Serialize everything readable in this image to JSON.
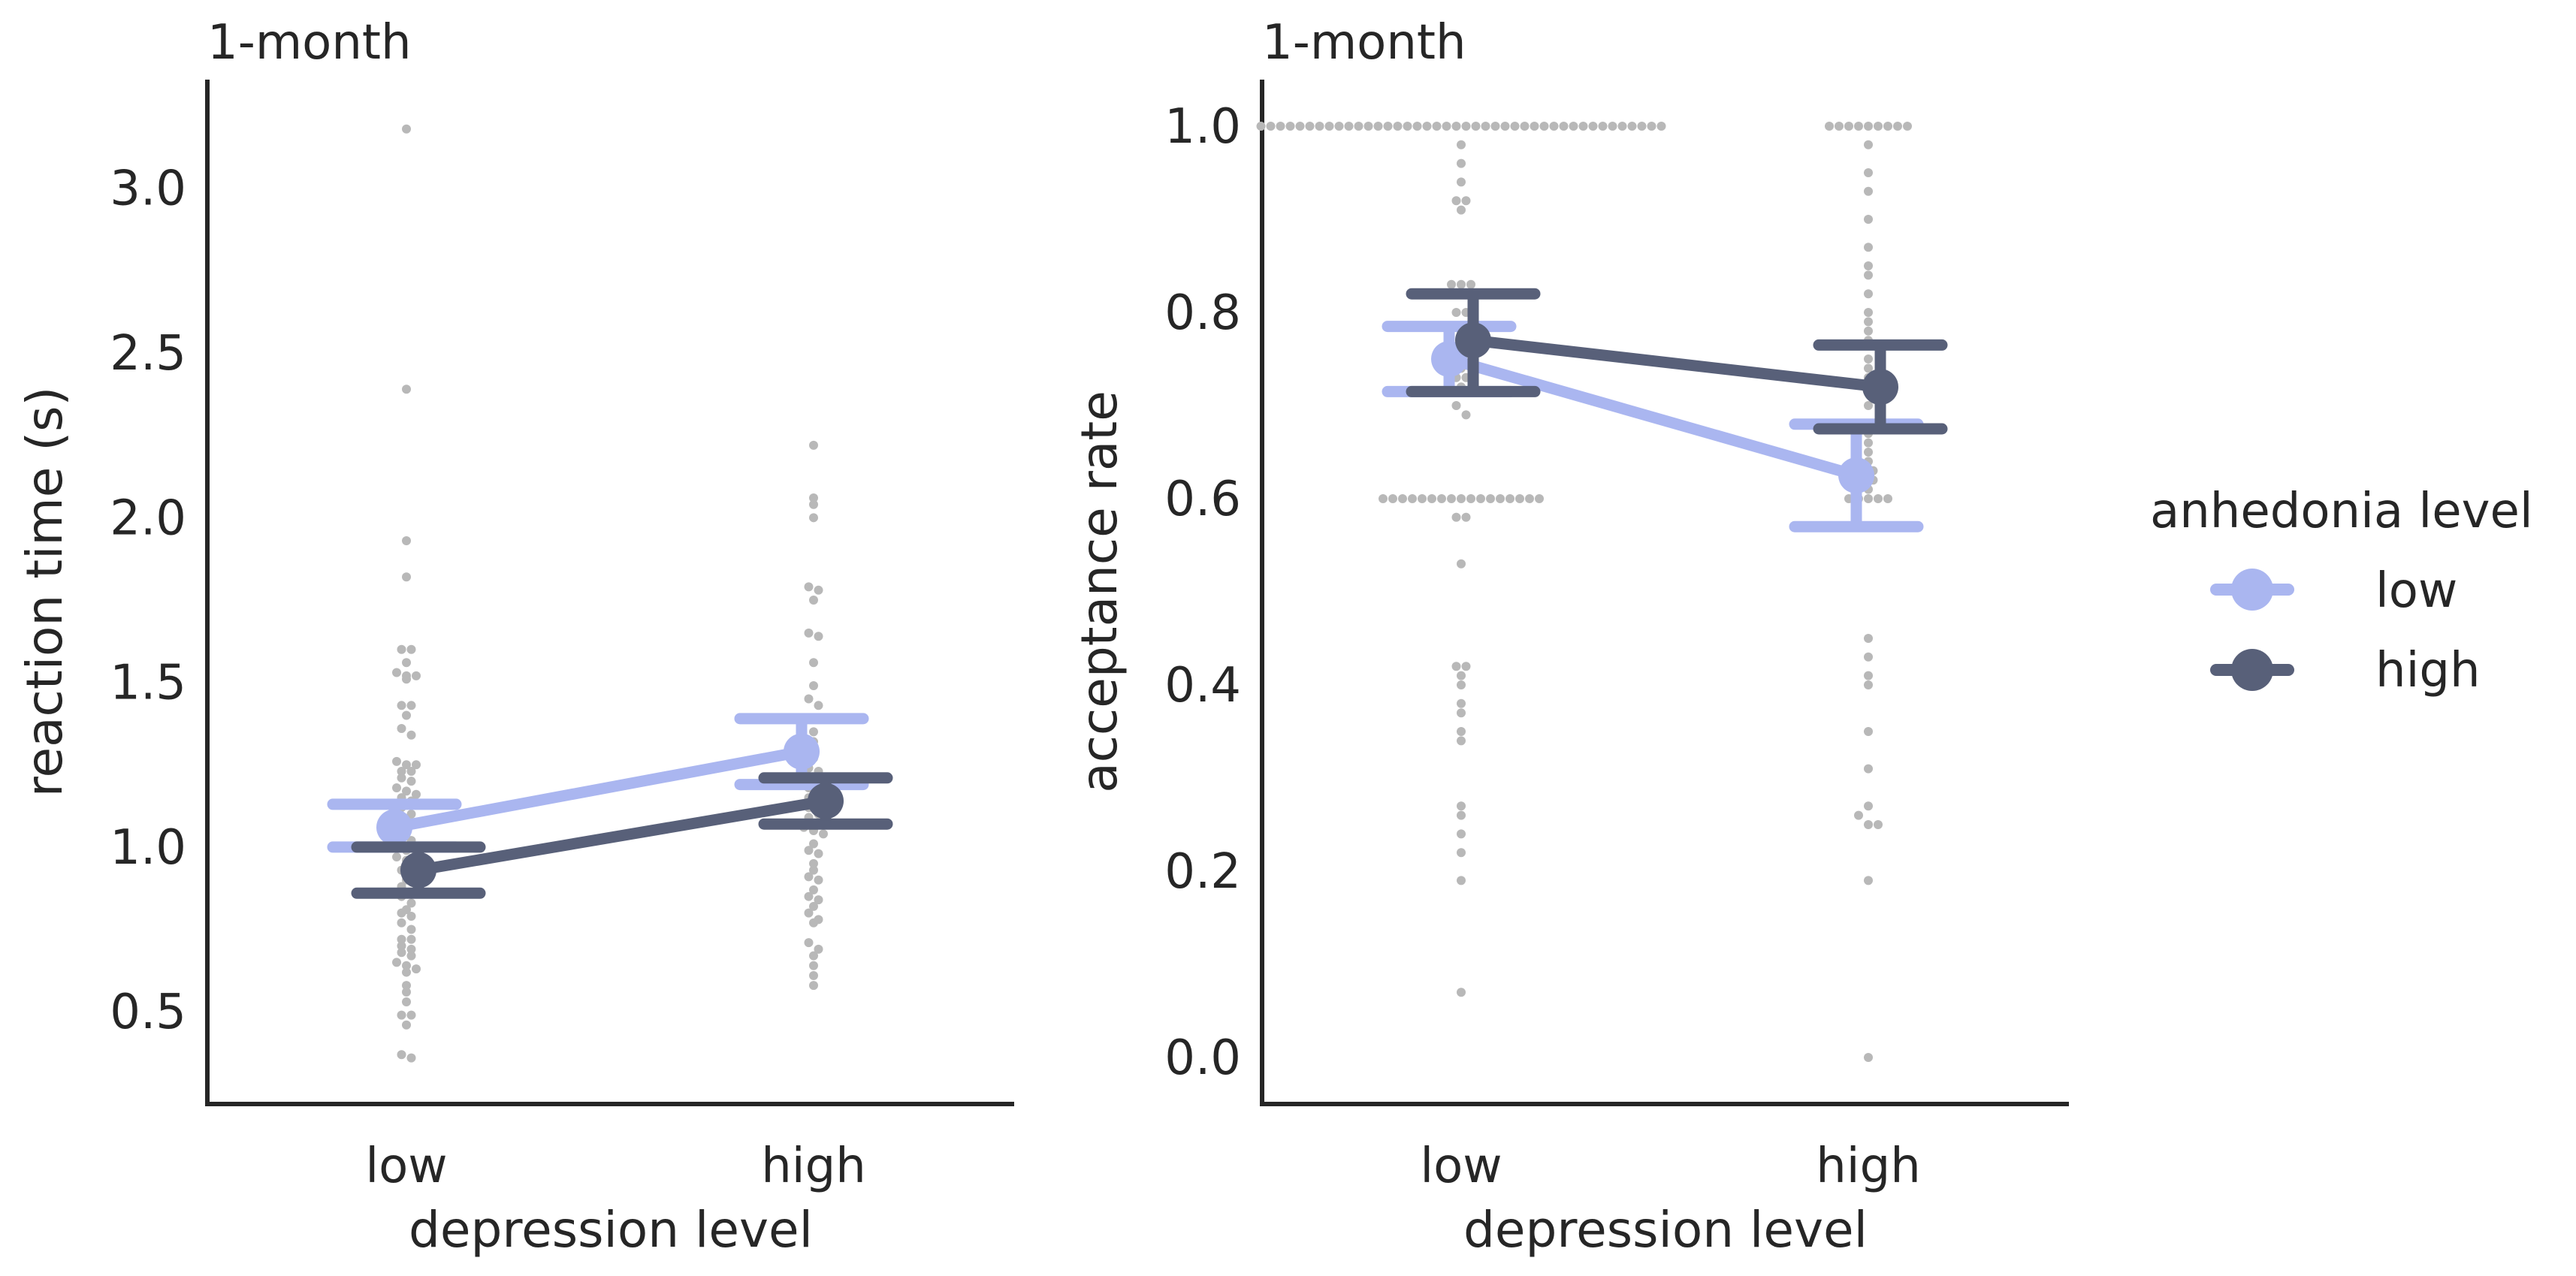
{
  "colors": {
    "low": "#aab6f0",
    "high": "#586079",
    "dots": "#b8b8b8",
    "axis": "#262626"
  },
  "legend": {
    "title": "anhedonia level",
    "items": [
      {
        "key": "low",
        "label": "low",
        "color": "#aab6f0"
      },
      {
        "key": "high",
        "label": "high",
        "color": "#586079"
      }
    ]
  },
  "chart_data": [
    {
      "type": "point",
      "title": "1-month",
      "xlabel": "depression level",
      "ylabel": "reaction time (s)",
      "categories": [
        "low",
        "high"
      ],
      "ylim": [
        0.22,
        3.33
      ],
      "yticks": [
        0.5,
        1.0,
        1.5,
        2.0,
        2.5,
        3.0
      ],
      "ytick_labels": [
        "0.5",
        "1.0",
        "1.5",
        "2.0",
        "2.5",
        "3.0"
      ],
      "series": [
        {
          "name": "low",
          "color": "#aab6f0",
          "values": [
            1.06,
            1.29
          ],
          "ci_low": [
            1.0,
            1.19
          ],
          "ci_high": [
            1.13,
            1.39
          ]
        },
        {
          "name": "high",
          "color": "#586079",
          "values": [
            0.93,
            1.14
          ],
          "ci_low": [
            0.86,
            1.07
          ],
          "ci_high": [
            1.0,
            1.21
          ]
        }
      ],
      "swarm": [
        [
          3.18,
          2.39,
          1.93,
          1.82,
          1.6,
          1.6,
          1.56,
          1.53,
          1.52,
          1.52,
          1.51,
          1.43,
          1.43,
          1.4,
          1.36,
          1.34,
          1.26,
          1.25,
          1.25,
          1.23,
          1.23,
          1.21,
          1.2,
          1.18,
          1.17,
          1.16,
          1.15,
          1.14,
          1.12,
          1.1,
          1.09,
          1.08,
          1.07,
          1.05,
          1.03,
          1.02,
          1.0,
          0.99,
          0.98,
          0.97,
          0.96,
          0.95,
          0.93,
          0.92,
          0.9,
          0.88,
          0.86,
          0.85,
          0.83,
          0.81,
          0.8,
          0.79,
          0.77,
          0.75,
          0.72,
          0.72,
          0.7,
          0.69,
          0.68,
          0.67,
          0.65,
          0.64,
          0.63,
          0.62,
          0.58,
          0.56,
          0.53,
          0.49,
          0.49,
          0.46,
          0.37,
          0.36
        ],
        [
          2.22,
          2.06,
          2.04,
          2.0,
          1.79,
          1.78,
          1.75,
          1.65,
          1.64,
          1.56,
          1.49,
          1.45,
          1.43,
          1.39,
          1.35,
          1.32,
          1.3,
          1.27,
          1.24,
          1.23,
          1.21,
          1.19,
          1.18,
          1.17,
          1.15,
          1.13,
          1.12,
          1.1,
          1.09,
          1.07,
          1.06,
          1.05,
          1.04,
          1.01,
          0.99,
          0.98,
          0.95,
          0.93,
          0.91,
          0.9,
          0.87,
          0.85,
          0.84,
          0.82,
          0.8,
          0.78,
          0.77,
          0.71,
          0.69,
          0.67,
          0.64,
          0.61,
          0.58
        ]
      ]
    },
    {
      "type": "point",
      "title": "1-month",
      "xlabel": "depression level",
      "ylabel": "acceptance rate",
      "categories": [
        "low",
        "high"
      ],
      "ylim": [
        -0.05,
        1.05
      ],
      "yticks": [
        0.0,
        0.2,
        0.4,
        0.6,
        0.8,
        1.0
      ],
      "ytick_labels": [
        "0.0",
        "0.2",
        "0.4",
        "0.6",
        "0.8",
        "1.0"
      ],
      "series": [
        {
          "name": "low",
          "color": "#aab6f0",
          "values": [
            0.75,
            0.625
          ],
          "ci_low": [
            0.715,
            0.57
          ],
          "ci_high": [
            0.785,
            0.68
          ]
        },
        {
          "name": "high",
          "color": "#586079",
          "values": [
            0.77,
            0.72
          ],
          "ci_low": [
            0.715,
            0.675
          ],
          "ci_high": [
            0.82,
            0.765
          ]
        }
      ],
      "swarm": [
        [
          1,
          1,
          1,
          1,
          1,
          1,
          1,
          1,
          1,
          1,
          1,
          1,
          1,
          1,
          1,
          1,
          1,
          1,
          1,
          1,
          1,
          1,
          1,
          1,
          1,
          1,
          1,
          1,
          1,
          1,
          1,
          1,
          1,
          1,
          1,
          1,
          1,
          1,
          1,
          1,
          1,
          1,
          0.98,
          0.96,
          0.94,
          0.92,
          0.92,
          0.91,
          0.83,
          0.83,
          0.83,
          0.82,
          0.8,
          0.8,
          0.78,
          0.77,
          0.76,
          0.75,
          0.74,
          0.73,
          0.73,
          0.72,
          0.7,
          0.69,
          0.6,
          0.6,
          0.6,
          0.6,
          0.6,
          0.6,
          0.6,
          0.6,
          0.6,
          0.6,
          0.6,
          0.6,
          0.6,
          0.6,
          0.6,
          0.6,
          0.6,
          0.58,
          0.58,
          0.53,
          0.42,
          0.42,
          0.41,
          0.4,
          0.38,
          0.37,
          0.35,
          0.34,
          0.27,
          0.26,
          0.24,
          0.22,
          0.19,
          0.07
        ],
        [
          1,
          1,
          1,
          1,
          1,
          1,
          1,
          1,
          1,
          0.98,
          0.95,
          0.93,
          0.9,
          0.87,
          0.85,
          0.84,
          0.82,
          0.8,
          0.79,
          0.78,
          0.77,
          0.75,
          0.74,
          0.73,
          0.7,
          0.68,
          0.67,
          0.66,
          0.65,
          0.64,
          0.63,
          0.63,
          0.62,
          0.62,
          0.61,
          0.6,
          0.6,
          0.6,
          0.6,
          0.6,
          0.45,
          0.43,
          0.41,
          0.4,
          0.35,
          0.31,
          0.27,
          0.26,
          0.25,
          0.25,
          0.19,
          0.0
        ]
      ]
    }
  ]
}
